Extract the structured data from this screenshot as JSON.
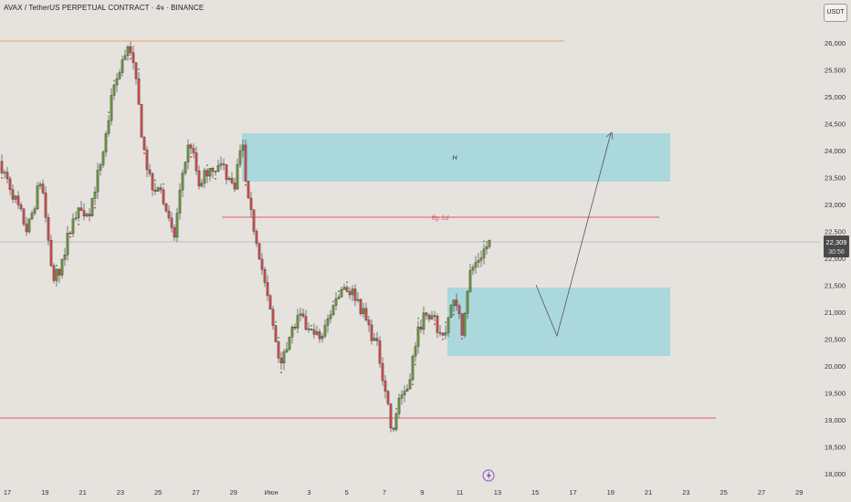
{
  "header": {
    "title": "AVAX / TetherUS PERPETUAL CONTRACT · 4ч · BINANCE",
    "currency_button": "USDT"
  },
  "colors": {
    "background": "#e6e3de",
    "zone_fill": "#9fd6dc",
    "fvg_line": "#e05a6a",
    "top_line": "#f5a05a",
    "bottom_line": "#e05a6a",
    "current_price_bg": "#4a4a4a",
    "up_candle": "#6f9a3a",
    "down_candle": "#d94a4a"
  },
  "price_axis": {
    "ticks": [
      "26,000",
      "25,500",
      "25,000",
      "24,500",
      "24,000",
      "23,500",
      "23,000",
      "22,500",
      "22,000",
      "21,500",
      "21,000",
      "20,500",
      "20,000",
      "19,500",
      "19,000",
      "18,500",
      "18,000"
    ]
  },
  "time_axis": {
    "ticks": [
      "17",
      "19",
      "21",
      "23",
      "25",
      "27",
      "29",
      "Июн",
      "3",
      "5",
      "7",
      "9",
      "11",
      "13",
      "15",
      "17",
      "19",
      "21",
      "23",
      "25",
      "27",
      "29"
    ]
  },
  "current_price": {
    "value": "22,309",
    "countdown": "30:56"
  },
  "annotations": {
    "fvg_label": "ffg 1d",
    "zone_label": "H"
  },
  "chart_data": {
    "type": "candlestick",
    "symbol": "AVAX / TetherUS PERPETUAL CONTRACT",
    "interval": "4ч",
    "exchange": "BINANCE",
    "ylim": [
      18000,
      26300
    ],
    "current_price": 22309,
    "levels": [
      {
        "name": "top",
        "price": 26000
      },
      {
        "name": "ffg 1d",
        "price": 22750
      },
      {
        "name": "bottom",
        "price": 19050
      }
    ],
    "zones": [
      {
        "label": "H",
        "from_date": "29 May",
        "to_date": "21 Jun",
        "price_low": 23400,
        "price_high": 24350
      },
      {
        "label": "",
        "from_date": "9 Jun",
        "to_date": "21 Jun",
        "price_low": 20200,
        "price_high": 21450
      }
    ],
    "projection": [
      {
        "date": "13 Jun",
        "price": 21500
      },
      {
        "date": "15 Jun",
        "price": 20550
      },
      {
        "date": "18 Jun",
        "price": 24300
      }
    ],
    "candles_summary": [
      {
        "date": "17 May",
        "close": 23800
      },
      {
        "date": "20 May",
        "close": 21800
      },
      {
        "date": "23 May",
        "close": 26000
      },
      {
        "date": "25 May",
        "close": 23200
      },
      {
        "date": "27 May",
        "close": 23700
      },
      {
        "date": "29 May",
        "close": 23000
      },
      {
        "date": "1 Jun",
        "close": 20100
      },
      {
        "date": "3 Jun",
        "close": 21200
      },
      {
        "date": "5 Jun",
        "close": 20400
      },
      {
        "date": "6 Jun",
        "close": 18550
      },
      {
        "date": "8 Jun",
        "close": 21000
      },
      {
        "date": "10 Jun",
        "close": 21700
      },
      {
        "date": "11 Jun",
        "close": 22309
      }
    ]
  }
}
